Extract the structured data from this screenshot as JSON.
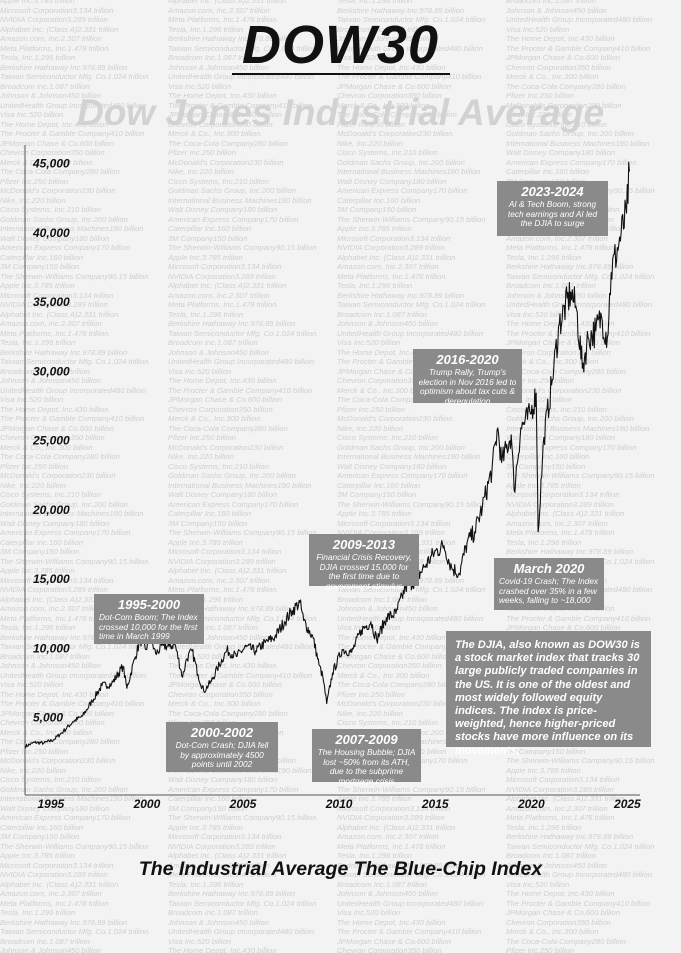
{
  "page": {
    "title": "DOW30",
    "subtitle": "Dow Jones Industrial Average",
    "footer": "The Industrial Average The Blue-Chip Index",
    "info_text": "The DJIA, also known as DOW30 is a stock market index that tracks 30 large publicly traded companies in the US. It is one of the oldest and most widely followed equity indices. The index is price-weighted, hence higher-priced stocks have more influence on its movements."
  },
  "background_list": [
    "Apple Inc.3.785 trillion",
    "Microsoft Corporation3.134 trillion",
    "NVIDIA Corporation3.289 trillion",
    "Alphabet Inc. (Class A)2.331 trillion",
    "Amazon.com, Inc.2.307 trillion",
    "Meta Platforms, Inc.1.478 trillion",
    "Tesla, Inc.1.296 trillion",
    "Berkshire Hathaway Inc.978.89 billion",
    "Taiwan Semiconductor Mfg. Co.1.024 trillion",
    "Broadcom Inc.1.087 trillion",
    "Johnson & Johnson450 billion",
    "UnitedHealth Group Incorporated480 billion",
    "Visa Inc.520 billion",
    "The Home Depot, Inc.430 billion",
    "The Procter & Gamble Company410 billion",
    "JPMorgan Chase & Co.600 billion",
    "Chevron Corporation350 billion",
    "Merck & Co., Inc.300 billion",
    "The Coca-Cola Company280 billion",
    "Pfizer Inc.250 billion",
    "McDonald's Corporation230 billion",
    "Nike, Inc.220 billion",
    "Cisco Systems, Inc.210 billion",
    "Goldman Sachs Group, Inc.200 billion",
    "International Business Machines190 billion",
    "Walt Disney Company180 billion",
    "American Express Company170 billion",
    "Caterpillar Inc.160 billion",
    "3M Company150 billion",
    "The Sherwin-Williams Company90.15 billion"
  ],
  "annotations": [
    {
      "heading": "1995-2000",
      "text": "Dot-Com Boom; The Index crossed 10,000 for the first time in March 1999"
    },
    {
      "heading": "2000-2002",
      "text": "Dot-Com Crash; DJIA fell by approximately 4500 points until 2002"
    },
    {
      "heading": "2009-2013",
      "text": "Financial Crisis Recovery, DJIA crossed 15,000 for the first time due to government stimulus"
    },
    {
      "heading": "2007-2009",
      "text": "The Housing Bubble; DJIA lost ~50% from its ATH, due to the subprime mortgage crisis"
    },
    {
      "heading": "2016-2020",
      "text": "Trump Rally, Trump's election in Nov 2016 led to optimism about tax cuts & deregulation"
    },
    {
      "heading": "March 2020",
      "text": "Covid-19 Crash; The Index crashed over 35% in a few weeks, falling to ~18,000"
    },
    {
      "heading": "2023-2024",
      "text": "AI & Tech Boom, strong tech earnings and AI led the DJIA to surge"
    }
  ],
  "chart_data": {
    "type": "line",
    "title": "",
    "xlabel": "",
    "ylabel": "",
    "xlim": [
      1993.5,
      2025.5
    ],
    "ylim": [
      0,
      48000
    ],
    "grid": false,
    "legend": "none",
    "line_color": "#111111",
    "x_ticks": [
      1995,
      2000,
      2005,
      2010,
      2015,
      2020,
      2025
    ],
    "x_tick_labels": [
      "1995",
      "2000",
      "2005",
      "2010",
      "2015",
      "2020",
      "2025"
    ],
    "y_ticks": [
      5000,
      10000,
      15000,
      20000,
      25000,
      30000,
      35000,
      40000,
      45000
    ],
    "y_tick_labels": [
      "5,000",
      "10,000",
      "15,000",
      "20,000",
      "25,000",
      "30,000",
      "35,000",
      "40,000",
      "45,000"
    ],
    "series": [
      {
        "name": "",
        "x": [
          1993.5,
          1994.0,
          1994.5,
          1995.0,
          1995.5,
          1996.0,
          1996.5,
          1997.0,
          1997.5,
          1998.0,
          1998.6,
          1998.8,
          1999.2,
          1999.5,
          1999.8,
          2000.0,
          2000.3,
          2000.7,
          2001.0,
          2001.3,
          2001.7,
          2001.9,
          2002.2,
          2002.5,
          2002.8,
          2003.2,
          2003.5,
          2004.0,
          2004.5,
          2005.0,
          2005.5,
          2006.0,
          2006.5,
          2007.0,
          2007.4,
          2007.8,
          2008.0,
          2008.5,
          2008.8,
          2009.0,
          2009.2,
          2009.5,
          2010.0,
          2010.5,
          2011.0,
          2011.5,
          2011.8,
          2012.3,
          2012.8,
          2013.3,
          2013.8,
          2014.3,
          2014.8,
          2015.3,
          2015.7,
          2016.1,
          2016.5,
          2016.9,
          2017.3,
          2017.8,
          2018.1,
          2018.3,
          2018.8,
          2018.95,
          2019.3,
          2019.8,
          2020.1,
          2020.2,
          2020.5,
          2020.9,
          2021.3,
          2021.9,
          2022.2,
          2022.5,
          2022.8,
          2023.2,
          2023.5,
          2023.8,
          2024.0,
          2024.4,
          2024.8,
          2024.95
        ],
        "values": [
          3500,
          3800,
          3750,
          4000,
          4600,
          5300,
          5700,
          6800,
          7900,
          8000,
          9300,
          7700,
          9800,
          11200,
          10500,
          11400,
          10200,
          10800,
          10700,
          10900,
          8500,
          9800,
          10400,
          8700,
          7500,
          8200,
          9100,
          10450,
          10000,
          10700,
          10400,
          11000,
          11400,
          12500,
          13300,
          13900,
          12600,
          11300,
          9400,
          8500,
          6600,
          8800,
          10500,
          10300,
          11900,
          12500,
          11200,
          12800,
          13100,
          15000,
          15500,
          16500,
          17500,
          18000,
          16400,
          16000,
          18200,
          19000,
          20800,
          23500,
          26500,
          24000,
          26000,
          22000,
          26500,
          27500,
          29000,
          19000,
          25800,
          29600,
          34000,
          36300,
          35000,
          30800,
          33000,
          33500,
          34500,
          33000,
          37700,
          39800,
          42000,
          45000
        ]
      }
    ]
  }
}
